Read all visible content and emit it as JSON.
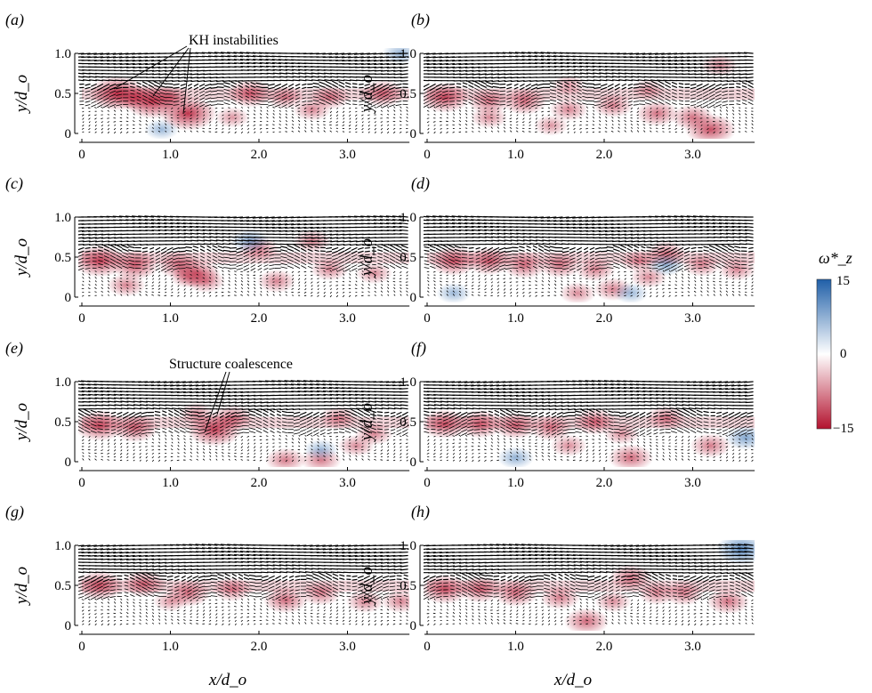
{
  "figure": {
    "panel_labels": [
      "(a)",
      "(b)",
      "(c)",
      "(d)",
      "(e)",
      "(f)",
      "(g)",
      "(h)"
    ],
    "y_axis_label": "y/d_o",
    "x_axis_label": "x/d_o",
    "annotations": {
      "kh": "KH instabilities",
      "coalescence": "Structure coalescence"
    },
    "colorbar": {
      "label": "ω*_z",
      "ticks": [
        "15",
        "0",
        "−15"
      ],
      "colors": {
        "positive": "#1f5fa8",
        "zero": "#ffffff",
        "negative": "#b3122e"
      }
    }
  },
  "chart_data": [
    {
      "type": "heatmap",
      "panel": "(a)",
      "xlim": [
        0,
        3.7
      ],
      "ylim": [
        0,
        1.0
      ],
      "x_ticks": [
        "0",
        "1.0",
        "2.0",
        "3.0"
      ],
      "y_ticks": [
        "0",
        "0.5",
        "1.0"
      ],
      "shear_layer_y": 0.5,
      "blobs": [
        [
          0.4,
          0.5,
          -15
        ],
        [
          0.8,
          0.4,
          -15
        ],
        [
          1.2,
          0.25,
          -15
        ],
        [
          0.6,
          0.45,
          -8
        ],
        [
          1.0,
          0.45,
          -7
        ],
        [
          1.9,
          0.5,
          -10
        ],
        [
          2.3,
          0.45,
          -6
        ],
        [
          2.8,
          0.45,
          -7
        ],
        [
          3.4,
          0.5,
          -9
        ],
        [
          2.6,
          0.3,
          -6
        ],
        [
          0.9,
          0.05,
          4
        ],
        [
          3.6,
          1.0,
          5
        ],
        [
          1.7,
          0.2,
          -4
        ]
      ]
    },
    {
      "type": "heatmap",
      "panel": "(b)",
      "xlim": [
        0,
        3.7
      ],
      "ylim": [
        0,
        1.0
      ],
      "x_ticks": [
        "0",
        "1.0",
        "2.0",
        "3.0"
      ],
      "y_ticks": [
        "0",
        "0.5",
        "1.0"
      ],
      "shear_layer_y": 0.5,
      "blobs": [
        [
          0.2,
          0.45,
          -12
        ],
        [
          0.7,
          0.4,
          -8
        ],
        [
          1.1,
          0.4,
          -9
        ],
        [
          1.6,
          0.3,
          -6
        ],
        [
          2.1,
          0.35,
          -7
        ],
        [
          2.6,
          0.25,
          -8
        ],
        [
          3.0,
          0.2,
          -8
        ],
        [
          3.2,
          0.05,
          -12
        ],
        [
          3.3,
          0.85,
          -5
        ],
        [
          0.7,
          0.2,
          -5
        ],
        [
          1.4,
          0.1,
          -4
        ],
        [
          1.6,
          0.6,
          -4
        ],
        [
          2.5,
          0.55,
          -4
        ]
      ]
    },
    {
      "type": "heatmap",
      "panel": "(c)",
      "xlim": [
        0,
        3.7
      ],
      "ylim": [
        0,
        1.0
      ],
      "x_ticks": [
        "0",
        "1.0",
        "2.0",
        "3.0"
      ],
      "y_ticks": [
        "0",
        "0.5",
        "1.0"
      ],
      "shear_layer_y": 0.5,
      "blobs": [
        [
          0.2,
          0.45,
          -13
        ],
        [
          0.6,
          0.4,
          -11
        ],
        [
          1.1,
          0.4,
          -9
        ],
        [
          1.3,
          0.3,
          -10
        ],
        [
          0.5,
          0.15,
          -6
        ],
        [
          1.4,
          0.2,
          -6
        ],
        [
          2.0,
          0.6,
          -7
        ],
        [
          2.6,
          0.7,
          -6
        ],
        [
          2.2,
          0.2,
          -6
        ],
        [
          2.8,
          0.35,
          -6
        ],
        [
          3.3,
          0.3,
          -5
        ],
        [
          1.9,
          0.7,
          6
        ],
        [
          1.2,
          0.25,
          -5
        ]
      ]
    },
    {
      "type": "heatmap",
      "panel": "(d)",
      "xlim": [
        0,
        3.7
      ],
      "ylim": [
        0,
        1.0
      ],
      "x_ticks": [
        "0",
        "1.0",
        "2.0",
        "3.0"
      ],
      "y_ticks": [
        "0",
        "0.5",
        "1.0"
      ],
      "shear_layer_y": 0.5,
      "blobs": [
        [
          0.3,
          0.45,
          -11
        ],
        [
          0.7,
          0.45,
          -10
        ],
        [
          1.1,
          0.4,
          -9
        ],
        [
          1.5,
          0.4,
          -8
        ],
        [
          1.9,
          0.35,
          -7
        ],
        [
          2.4,
          0.45,
          -6
        ],
        [
          2.7,
          0.55,
          -7
        ],
        [
          3.1,
          0.4,
          -6
        ],
        [
          3.5,
          0.35,
          -6
        ],
        [
          2.1,
          0.1,
          -6
        ],
        [
          2.5,
          0.25,
          -5
        ],
        [
          0.3,
          0.05,
          4
        ],
        [
          2.3,
          0.05,
          4
        ],
        [
          2.7,
          0.4,
          5
        ],
        [
          1.7,
          0.05,
          -5
        ]
      ]
    },
    {
      "type": "heatmap",
      "panel": "(e)",
      "xlim": [
        0,
        3.7
      ],
      "ylim": [
        0,
        1.0
      ],
      "x_ticks": [
        "0",
        "1.0",
        "2.0",
        "3.0"
      ],
      "y_ticks": [
        "0",
        "0.5",
        "1.0"
      ],
      "shear_layer_y": 0.5,
      "blobs": [
        [
          0.2,
          0.45,
          -12
        ],
        [
          0.6,
          0.42,
          -10
        ],
        [
          1.5,
          0.4,
          -14
        ],
        [
          1.7,
          0.55,
          -8
        ],
        [
          2.3,
          0.02,
          -7
        ],
        [
          2.7,
          0.02,
          -7
        ],
        [
          2.9,
          0.55,
          -6
        ],
        [
          3.3,
          0.35,
          -6
        ],
        [
          3.1,
          0.2,
          -5
        ],
        [
          2.7,
          0.15,
          4
        ],
        [
          1.3,
          0.6,
          -5
        ]
      ]
    },
    {
      "type": "heatmap",
      "panel": "(f)",
      "xlim": [
        0,
        3.7
      ],
      "ylim": [
        0,
        1.0
      ],
      "x_ticks": [
        "0",
        "1.0",
        "2.0",
        "3.0"
      ],
      "y_ticks": [
        "0",
        "0.5",
        "1.0"
      ],
      "shear_layer_y": 0.5,
      "blobs": [
        [
          0.2,
          0.47,
          -11
        ],
        [
          0.6,
          0.47,
          -10
        ],
        [
          1.0,
          0.45,
          -9
        ],
        [
          1.4,
          0.42,
          -8
        ],
        [
          1.9,
          0.5,
          -9
        ],
        [
          2.3,
          0.05,
          -9
        ],
        [
          2.7,
          0.55,
          -7
        ],
        [
          3.2,
          0.2,
          -7
        ],
        [
          1.6,
          0.2,
          -5
        ],
        [
          1.0,
          0.05,
          5
        ],
        [
          3.6,
          0.3,
          7
        ],
        [
          2.2,
          0.35,
          -5
        ]
      ]
    },
    {
      "type": "heatmap",
      "panel": "(g)",
      "xlim": [
        0,
        3.7
      ],
      "ylim": [
        0,
        1.0
      ],
      "x_ticks": [
        "0",
        "1.0",
        "2.0",
        "3.0"
      ],
      "y_ticks": [
        "0",
        "0.5",
        "1.0"
      ],
      "shear_layer_y": 0.5,
      "blobs": [
        [
          0.2,
          0.5,
          -11
        ],
        [
          0.7,
          0.52,
          -9
        ],
        [
          1.2,
          0.4,
          -9
        ],
        [
          1.7,
          0.45,
          -7
        ],
        [
          2.3,
          0.32,
          -9
        ],
        [
          2.7,
          0.4,
          -7
        ],
        [
          3.2,
          0.3,
          -6
        ],
        [
          3.6,
          0.3,
          -6
        ],
        [
          1.0,
          0.3,
          -4
        ]
      ]
    },
    {
      "type": "heatmap",
      "panel": "(h)",
      "xlim": [
        0,
        3.7
      ],
      "ylim": [
        0,
        1.0
      ],
      "x_ticks": [
        "0",
        "1.0",
        "2.0",
        "3.0"
      ],
      "y_ticks": [
        "0",
        "0.5",
        "1.0"
      ],
      "shear_layer_y": 0.5,
      "blobs": [
        [
          0.2,
          0.45,
          -11
        ],
        [
          0.6,
          0.45,
          -9
        ],
        [
          1.0,
          0.4,
          -9
        ],
        [
          1.5,
          0.35,
          -7
        ],
        [
          1.8,
          0.05,
          -9
        ],
        [
          2.3,
          0.6,
          -8
        ],
        [
          2.9,
          0.4,
          -7
        ],
        [
          3.4,
          0.3,
          -8
        ],
        [
          2.6,
          0.4,
          -6
        ],
        [
          3.55,
          0.95,
          12
        ],
        [
          2.1,
          0.3,
          -5
        ]
      ]
    }
  ]
}
